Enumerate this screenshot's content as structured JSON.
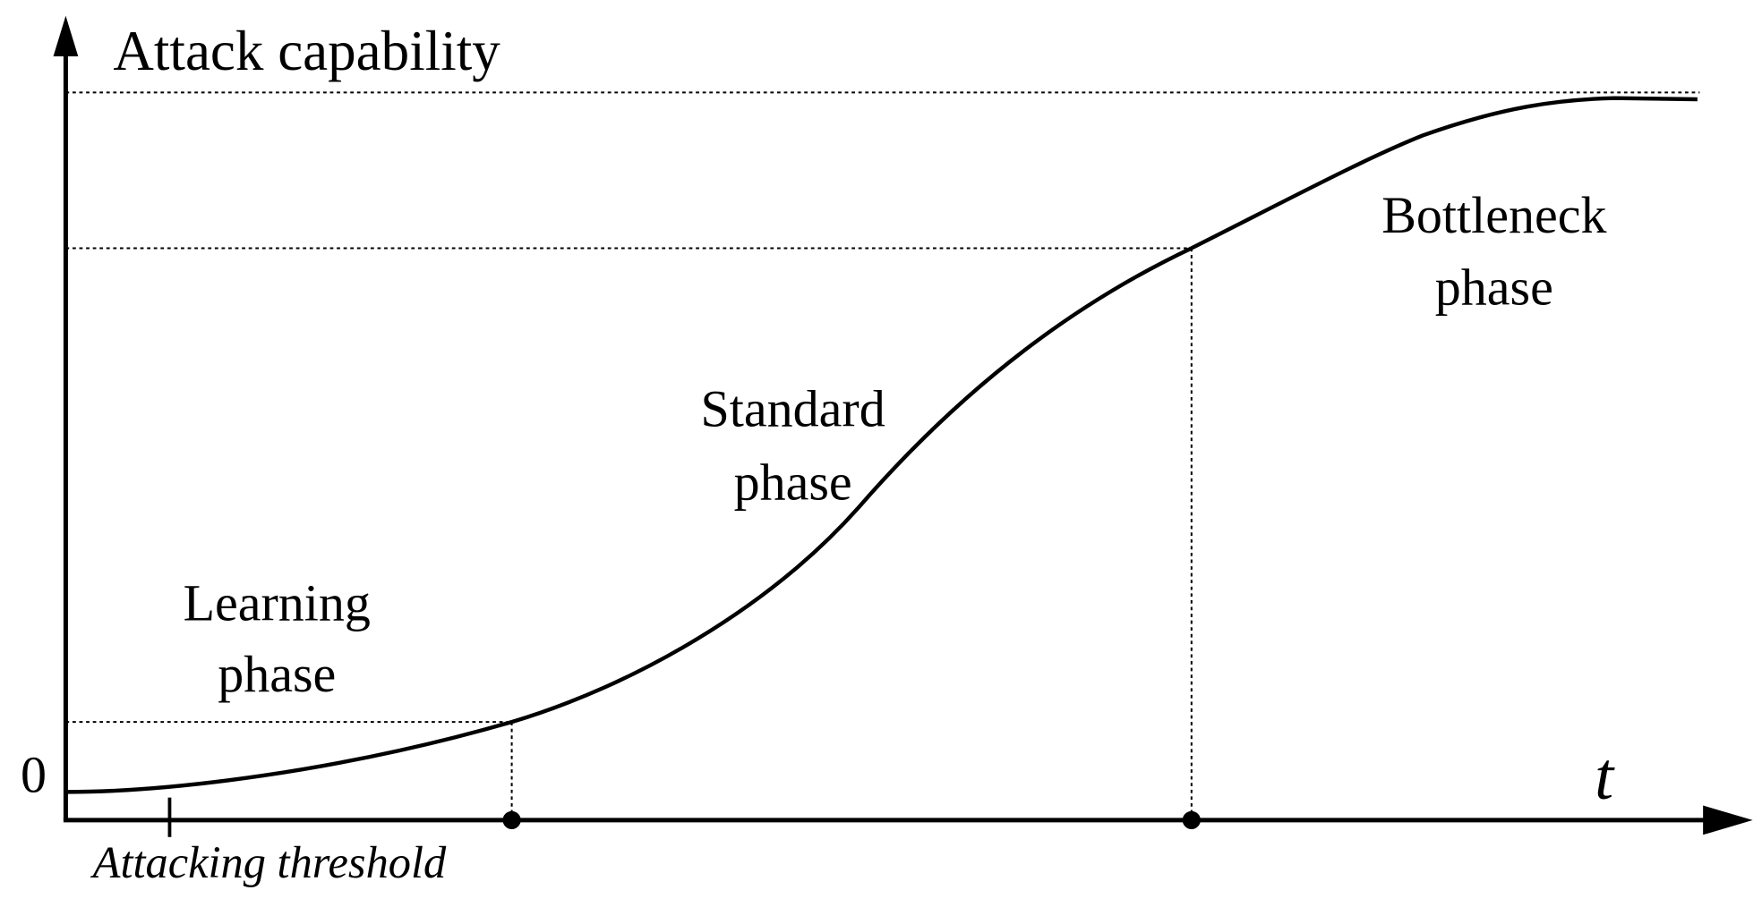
{
  "axes": {
    "y_label": "Attack capability",
    "origin": "0",
    "x_label": "t",
    "threshold": "Attacking threshold"
  },
  "phases": [
    {
      "lines": [
        "Learning",
        "phase"
      ]
    },
    {
      "lines": [
        "Standard",
        "phase"
      ]
    },
    {
      "lines": [
        "Bottleneck",
        "phase"
      ]
    }
  ]
}
